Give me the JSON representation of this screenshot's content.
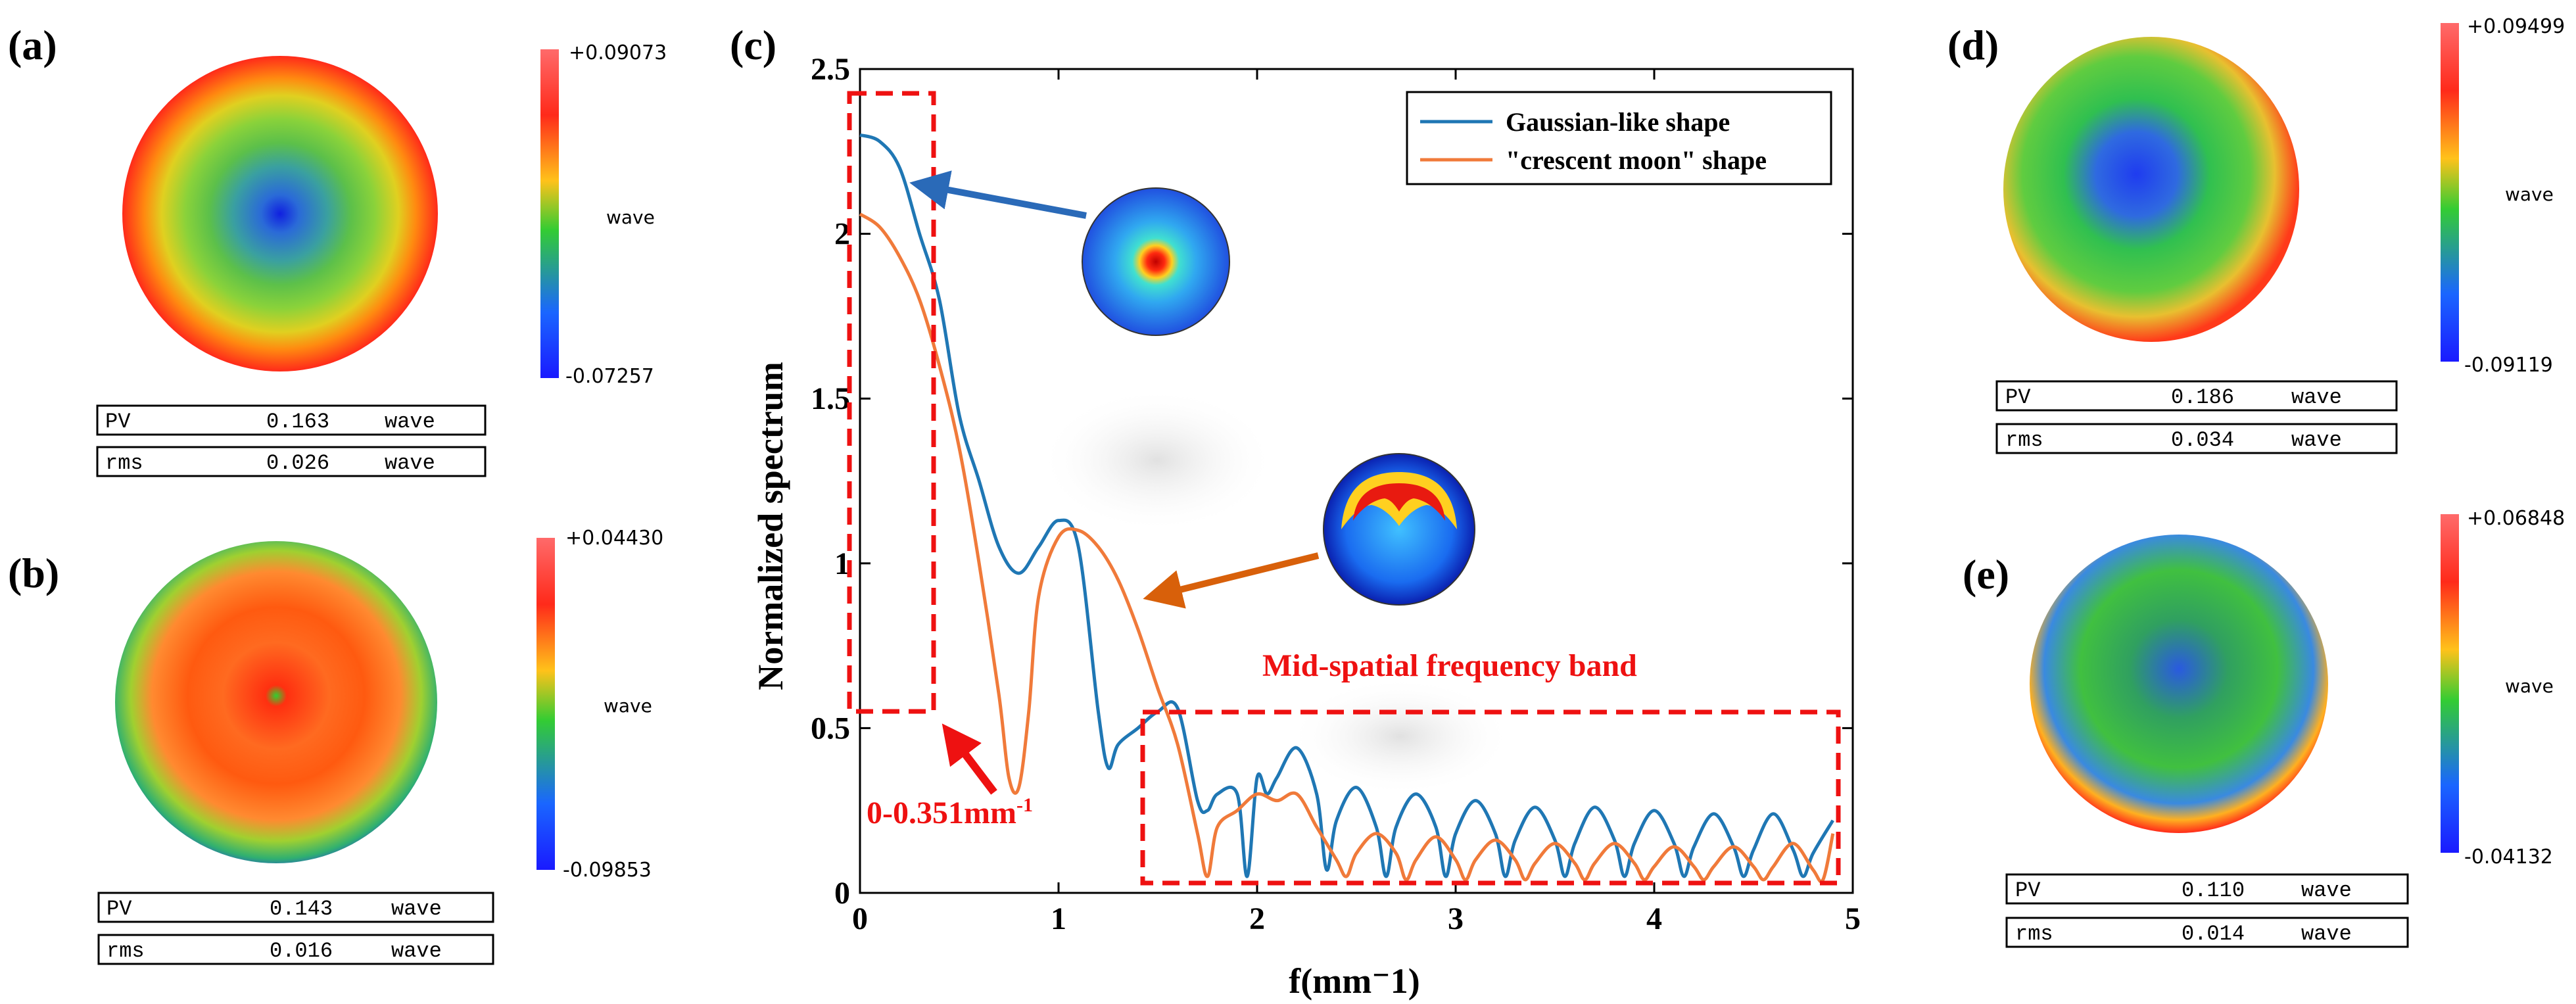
{
  "panels": {
    "a": {
      "label": "(a)",
      "colorbar": {
        "max": "+0.09073",
        "min": "-0.07257",
        "unit": "wave"
      },
      "stats": [
        {
          "name": "PV",
          "value": "0.163",
          "unit": "wave"
        },
        {
          "name": "rms",
          "value": "0.026",
          "unit": "wave"
        }
      ]
    },
    "b": {
      "label": "(b)",
      "colorbar": {
        "max": "+0.04430",
        "min": "-0.09853",
        "unit": "wave"
      },
      "stats": [
        {
          "name": "PV",
          "value": "0.143",
          "unit": "wave"
        },
        {
          "name": "rms",
          "value": "0.016",
          "unit": "wave"
        }
      ]
    },
    "c": {
      "label": "(c)"
    },
    "d": {
      "label": "(d)",
      "colorbar": {
        "max": "+0.09499",
        "min": "-0.09119",
        "unit": "wave"
      },
      "stats": [
        {
          "name": "PV",
          "value": "0.186",
          "unit": "wave"
        },
        {
          "name": "rms",
          "value": "0.034",
          "unit": "wave"
        }
      ]
    },
    "e": {
      "label": "(e)",
      "colorbar": {
        "max": "+0.06848",
        "min": "-0.04132",
        "unit": "wave"
      },
      "stats": [
        {
          "name": "PV",
          "value": "0.110",
          "unit": "wave"
        },
        {
          "name": "rms",
          "value": "0.014",
          "unit": "wave"
        }
      ]
    }
  },
  "chart_data": {
    "type": "line",
    "title": "",
    "xlabel": "f(mm⁻1)",
    "ylabel": "Normalized spectrum",
    "xlim": [
      0,
      5
    ],
    "ylim": [
      0,
      2.5
    ],
    "xticks": [
      0,
      1,
      2,
      3,
      4,
      5
    ],
    "xtick_labels": [
      "0",
      "1",
      "2",
      "3",
      "4",
      "5"
    ],
    "yticks": [
      0,
      0.5,
      1,
      1.5,
      2,
      2.5
    ],
    "ytick_labels": [
      "0",
      "0.5",
      "1",
      "1.5",
      "2",
      "2.5"
    ],
    "grid": false,
    "legend_position": "top-right",
    "series": [
      {
        "name": "Gaussian-like shape",
        "color": "#1f77b4",
        "x": [
          0,
          0.1,
          0.2,
          0.3,
          0.4,
          0.5,
          0.6,
          0.7,
          0.8,
          0.9,
          1.0,
          1.1,
          1.2,
          1.25,
          1.3,
          1.4,
          1.5,
          1.6,
          1.7,
          1.75,
          1.8,
          1.9,
          1.95,
          2.0,
          2.05,
          2.1,
          2.2,
          2.3,
          2.35,
          2.4,
          2.5,
          2.6,
          2.65,
          2.7,
          2.8,
          2.9,
          2.95,
          3.0,
          3.1,
          3.2,
          3.25,
          3.3,
          3.4,
          3.5,
          3.55,
          3.6,
          3.7,
          3.8,
          3.85,
          3.9,
          4.0,
          4.1,
          4.15,
          4.2,
          4.3,
          4.4,
          4.45,
          4.5,
          4.6,
          4.7,
          4.75,
          4.8,
          4.9
        ],
        "y": [
          2.3,
          2.28,
          2.2,
          2.0,
          1.8,
          1.45,
          1.25,
          1.05,
          0.97,
          1.05,
          1.13,
          1.05,
          0.55,
          0.38,
          0.45,
          0.5,
          0.55,
          0.56,
          0.28,
          0.25,
          0.3,
          0.3,
          0.05,
          0.35,
          0.3,
          0.35,
          0.44,
          0.3,
          0.07,
          0.22,
          0.32,
          0.2,
          0.05,
          0.2,
          0.3,
          0.2,
          0.05,
          0.18,
          0.28,
          0.18,
          0.05,
          0.16,
          0.26,
          0.16,
          0.05,
          0.15,
          0.26,
          0.16,
          0.05,
          0.15,
          0.25,
          0.15,
          0.05,
          0.14,
          0.24,
          0.14,
          0.05,
          0.13,
          0.24,
          0.13,
          0.05,
          0.12,
          0.22
        ]
      },
      {
        "name": "\"crescent moon\" shape",
        "color": "#f07a3a",
        "x": [
          0,
          0.1,
          0.2,
          0.3,
          0.4,
          0.5,
          0.6,
          0.7,
          0.75,
          0.8,
          0.85,
          0.9,
          1.0,
          1.1,
          1.2,
          1.3,
          1.4,
          1.5,
          1.6,
          1.7,
          1.75,
          1.8,
          1.9,
          2.0,
          2.1,
          2.2,
          2.3,
          2.4,
          2.45,
          2.5,
          2.6,
          2.7,
          2.75,
          2.8,
          2.9,
          3.0,
          3.05,
          3.1,
          3.2,
          3.3,
          3.35,
          3.4,
          3.5,
          3.6,
          3.65,
          3.7,
          3.8,
          3.9,
          3.95,
          4.0,
          4.1,
          4.2,
          4.25,
          4.3,
          4.4,
          4.5,
          4.55,
          4.6,
          4.7,
          4.8,
          4.85,
          4.9
        ],
        "y": [
          2.06,
          2.02,
          1.93,
          1.8,
          1.6,
          1.35,
          1.0,
          0.6,
          0.35,
          0.32,
          0.55,
          0.9,
          1.08,
          1.1,
          1.05,
          0.95,
          0.8,
          0.62,
          0.45,
          0.18,
          0.05,
          0.2,
          0.25,
          0.3,
          0.28,
          0.3,
          0.2,
          0.1,
          0.05,
          0.12,
          0.18,
          0.12,
          0.04,
          0.1,
          0.17,
          0.1,
          0.04,
          0.1,
          0.16,
          0.1,
          0.04,
          0.09,
          0.15,
          0.09,
          0.04,
          0.09,
          0.15,
          0.09,
          0.04,
          0.08,
          0.14,
          0.08,
          0.04,
          0.08,
          0.14,
          0.08,
          0.04,
          0.08,
          0.15,
          0.07,
          0.04,
          0.18
        ]
      }
    ],
    "annotations": {
      "low_band_label": "0-0.351mm",
      "low_band_exponent": "-1",
      "mid_band_label": "Mid-spatial frequency band"
    }
  }
}
